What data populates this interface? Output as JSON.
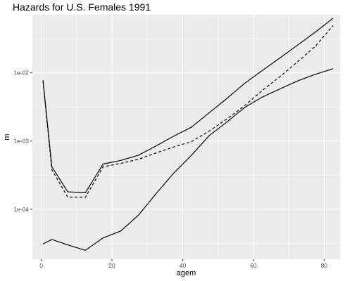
{
  "chart_data": {
    "type": "line",
    "title": "Hazards for U.S. Females 1991",
    "xlabel": "agem",
    "ylabel": "m",
    "x_scale": "linear",
    "y_scale": "log10",
    "xlim": [
      -2.5,
      84.5
    ],
    "ylim": [
      1.85e-05,
      0.071
    ],
    "x_ticks": [
      0,
      20,
      40,
      60,
      80
    ],
    "x_tick_labels": [
      "0",
      "20",
      "40",
      "60",
      "80"
    ],
    "x_minor_ticks": [
      10,
      30,
      50,
      70
    ],
    "y_ticks": [
      0.0001,
      0.001,
      0.01
    ],
    "y_tick_labels": [
      "1e-04",
      "1e-03",
      "1e-02"
    ],
    "y_minor_ticks": [
      3.16e-05,
      0.000316,
      0.00316,
      0.0316
    ],
    "grid": true,
    "legend": "none",
    "background_color": "#ebebeb",
    "grid_color": "#ffffff",
    "line_color": "#000000",
    "x": [
      0.5,
      3,
      7.5,
      12.5,
      17.5,
      22.5,
      27.5,
      32.5,
      37.5,
      42.5,
      47.5,
      52.5,
      57.5,
      62.5,
      67.5,
      72.5,
      77.5,
      82.5
    ],
    "series": [
      {
        "line_style": "solid",
        "values": [
          0.0078,
          0.00042,
          0.00018,
          0.000175,
          0.00046,
          0.00052,
          0.00062,
          0.00085,
          0.00118,
          0.0016,
          0.0026,
          0.0042,
          0.007,
          0.0108,
          0.0165,
          0.0255,
          0.0395,
          0.063
        ]
      },
      {
        "line_style": "dashed",
        "values": [
          0.0076,
          0.00038,
          0.00015,
          0.00015,
          0.00042,
          0.00047,
          0.00054,
          0.00067,
          0.00082,
          0.00098,
          0.0014,
          0.0021,
          0.0033,
          0.0055,
          0.0088,
          0.0145,
          0.0245,
          0.049
        ]
      },
      {
        "line_style": "solid",
        "values": [
          3.1e-05,
          3.6e-05,
          3e-05,
          2.5e-05,
          3.8e-05,
          4.8e-05,
          8.2e-05,
          0.00017,
          0.00034,
          0.00062,
          0.0012,
          0.0019,
          0.0031,
          0.0044,
          0.0058,
          0.0076,
          0.0095,
          0.0115
        ]
      }
    ]
  }
}
